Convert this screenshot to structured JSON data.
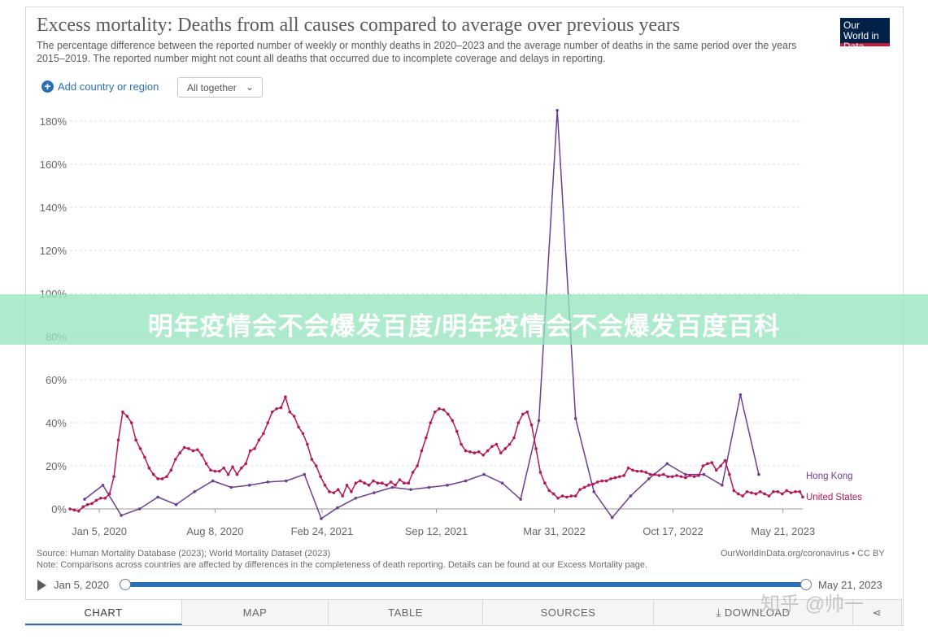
{
  "header": {
    "title": "Excess mortality: Deaths from all causes compared to average over previous years",
    "subtitle": "The percentage difference between the reported number of weekly or monthly deaths in 2020–2023 and the average number of deaths in the same period over the years 2015–2019. The reported number might not count all deaths that occurred due to incomplete coverage and delays in reporting.",
    "logo_text": "Our World in Data"
  },
  "controls": {
    "add_label": "Add country or region",
    "dropdown_value": "All together",
    "chevron_icon": "chevron-down-icon"
  },
  "banner": {
    "text": "明年疫情会不会爆发百度/明年疫情会不会爆发百度百科"
  },
  "chart_data": {
    "type": "line",
    "y_ticks": [
      "0%",
      "20%",
      "40%",
      "60%",
      "80%",
      "100%",
      "120%",
      "140%",
      "160%",
      "180%"
    ],
    "ylim": [
      -5,
      185
    ],
    "x_ticks": [
      "Jan 5, 2020",
      "Aug 8, 2020",
      "Feb 24, 2021",
      "Sep 12, 2021",
      "Mar 31, 2022",
      "Oct 17, 2022",
      "May 21, 2023"
    ],
    "grid": true,
    "legend_position": "right",
    "series": [
      {
        "name": "Hong Kong",
        "color": "#6d3e91",
        "points": [
          [
            0.02,
            4.5
          ],
          [
            0.045,
            11
          ],
          [
            0.07,
            -3
          ],
          [
            0.095,
            0
          ],
          [
            0.12,
            5.5
          ],
          [
            0.145,
            2
          ],
          [
            0.17,
            8
          ],
          [
            0.195,
            13
          ],
          [
            0.22,
            10
          ],
          [
            0.245,
            11
          ],
          [
            0.27,
            12.5
          ],
          [
            0.295,
            13
          ],
          [
            0.32,
            16
          ],
          [
            0.343,
            -4.5
          ],
          [
            0.365,
            0.5
          ],
          [
            0.39,
            5
          ],
          [
            0.415,
            7.5
          ],
          [
            0.44,
            10
          ],
          [
            0.465,
            9
          ],
          [
            0.49,
            10
          ],
          [
            0.515,
            11
          ],
          [
            0.54,
            13
          ],
          [
            0.565,
            16
          ],
          [
            0.59,
            12
          ],
          [
            0.615,
            4.5
          ],
          [
            0.64,
            41
          ],
          [
            0.665,
            185
          ],
          [
            0.69,
            42
          ],
          [
            0.715,
            8
          ],
          [
            0.74,
            -4
          ],
          [
            0.765,
            6
          ],
          [
            0.79,
            14
          ],
          [
            0.815,
            21
          ],
          [
            0.84,
            16
          ],
          [
            0.865,
            16
          ],
          [
            0.89,
            11
          ],
          [
            0.915,
            53
          ],
          [
            0.94,
            16
          ]
        ]
      },
      {
        "name": "United States",
        "color": "#b5175b",
        "points": [
          [
            0.0,
            0
          ],
          [
            0.006,
            -0.5
          ],
          [
            0.012,
            -1
          ],
          [
            0.018,
            1
          ],
          [
            0.024,
            2
          ],
          [
            0.03,
            2.5
          ],
          [
            0.036,
            4
          ],
          [
            0.042,
            5
          ],
          [
            0.048,
            5
          ],
          [
            0.054,
            7
          ],
          [
            0.06,
            15
          ],
          [
            0.066,
            32
          ],
          [
            0.072,
            45
          ],
          [
            0.078,
            43
          ],
          [
            0.084,
            40
          ],
          [
            0.09,
            32
          ],
          [
            0.096,
            28
          ],
          [
            0.102,
            24
          ],
          [
            0.108,
            19
          ],
          [
            0.114,
            16
          ],
          [
            0.12,
            14
          ],
          [
            0.126,
            14
          ],
          [
            0.132,
            15
          ],
          [
            0.138,
            18
          ],
          [
            0.144,
            23
          ],
          [
            0.15,
            26
          ],
          [
            0.156,
            28.5
          ],
          [
            0.162,
            28
          ],
          [
            0.168,
            27
          ],
          [
            0.174,
            27.5
          ],
          [
            0.18,
            25
          ],
          [
            0.186,
            21
          ],
          [
            0.192,
            18
          ],
          [
            0.198,
            17.5
          ],
          [
            0.204,
            17.5
          ],
          [
            0.21,
            19
          ],
          [
            0.216,
            16
          ],
          [
            0.222,
            19.5
          ],
          [
            0.228,
            16
          ],
          [
            0.234,
            19
          ],
          [
            0.24,
            21
          ],
          [
            0.246,
            27
          ],
          [
            0.252,
            28
          ],
          [
            0.258,
            32
          ],
          [
            0.264,
            35
          ],
          [
            0.27,
            40
          ],
          [
            0.276,
            45
          ],
          [
            0.282,
            46.5
          ],
          [
            0.288,
            47
          ],
          [
            0.294,
            52
          ],
          [
            0.3,
            45
          ],
          [
            0.306,
            43
          ],
          [
            0.312,
            38
          ],
          [
            0.318,
            35
          ],
          [
            0.324,
            30
          ],
          [
            0.33,
            23
          ],
          [
            0.336,
            20
          ],
          [
            0.342,
            15
          ],
          [
            0.348,
            11
          ],
          [
            0.354,
            8
          ],
          [
            0.36,
            7.5
          ],
          [
            0.366,
            9
          ],
          [
            0.372,
            6
          ],
          [
            0.378,
            11
          ],
          [
            0.384,
            8
          ],
          [
            0.39,
            12
          ],
          [
            0.396,
            13
          ],
          [
            0.402,
            12
          ],
          [
            0.408,
            11
          ],
          [
            0.414,
            13
          ],
          [
            0.42,
            12
          ],
          [
            0.426,
            12
          ],
          [
            0.432,
            11
          ],
          [
            0.438,
            12.5
          ],
          [
            0.444,
            11
          ],
          [
            0.45,
            13.5
          ],
          [
            0.456,
            12
          ],
          [
            0.462,
            12
          ],
          [
            0.468,
            17
          ],
          [
            0.474,
            20
          ],
          [
            0.48,
            27
          ],
          [
            0.486,
            33
          ],
          [
            0.492,
            40
          ],
          [
            0.498,
            45
          ],
          [
            0.504,
            46.5
          ],
          [
            0.51,
            46
          ],
          [
            0.516,
            44
          ],
          [
            0.522,
            41
          ],
          [
            0.528,
            36
          ],
          [
            0.534,
            30
          ],
          [
            0.54,
            27
          ],
          [
            0.546,
            26.5
          ],
          [
            0.552,
            26
          ],
          [
            0.558,
            26.5
          ],
          [
            0.564,
            25
          ],
          [
            0.57,
            27
          ],
          [
            0.576,
            29
          ],
          [
            0.582,
            30
          ],
          [
            0.588,
            26
          ],
          [
            0.594,
            28
          ],
          [
            0.6,
            30
          ],
          [
            0.606,
            33
          ],
          [
            0.612,
            40
          ],
          [
            0.618,
            44
          ],
          [
            0.624,
            45
          ],
          [
            0.63,
            39
          ],
          [
            0.636,
            28
          ],
          [
            0.642,
            17
          ],
          [
            0.648,
            12
          ],
          [
            0.654,
            8.5
          ],
          [
            0.66,
            7
          ],
          [
            0.666,
            5
          ],
          [
            0.672,
            6
          ],
          [
            0.678,
            5.5
          ],
          [
            0.684,
            6
          ],
          [
            0.69,
            6
          ],
          [
            0.696,
            9
          ],
          [
            0.702,
            10
          ],
          [
            0.708,
            11
          ],
          [
            0.714,
            11.5
          ],
          [
            0.72,
            12.5
          ],
          [
            0.726,
            13
          ],
          [
            0.732,
            13
          ],
          [
            0.738,
            14
          ],
          [
            0.744,
            14.5
          ],
          [
            0.75,
            15
          ],
          [
            0.756,
            15.5
          ],
          [
            0.762,
            19
          ],
          [
            0.768,
            18
          ],
          [
            0.774,
            17.5
          ],
          [
            0.78,
            17.5
          ],
          [
            0.786,
            17
          ],
          [
            0.792,
            16
          ],
          [
            0.798,
            16
          ],
          [
            0.804,
            15.5
          ],
          [
            0.81,
            16
          ],
          [
            0.816,
            15
          ],
          [
            0.822,
            15
          ],
          [
            0.828,
            15.5
          ],
          [
            0.834,
            15
          ],
          [
            0.84,
            14.5
          ],
          [
            0.846,
            15.5
          ],
          [
            0.852,
            15
          ],
          [
            0.858,
            15.5
          ],
          [
            0.864,
            20
          ],
          [
            0.87,
            21
          ],
          [
            0.876,
            21.5
          ],
          [
            0.882,
            18
          ],
          [
            0.888,
            20
          ],
          [
            0.894,
            22.5
          ],
          [
            0.9,
            16
          ],
          [
            0.906,
            8.5
          ],
          [
            0.912,
            7
          ],
          [
            0.918,
            6
          ],
          [
            0.924,
            8
          ],
          [
            0.93,
            7.5
          ],
          [
            0.936,
            7
          ],
          [
            0.942,
            8
          ],
          [
            0.948,
            7
          ],
          [
            0.954,
            6
          ],
          [
            0.96,
            8
          ],
          [
            0.966,
            8
          ],
          [
            0.972,
            7
          ],
          [
            0.978,
            8.5
          ],
          [
            0.984,
            7.5
          ],
          [
            0.99,
            8
          ],
          [
            0.996,
            8
          ],
          [
            1.0,
            5.5
          ]
        ]
      }
    ]
  },
  "footer": {
    "source": "Source: Human Mortality Database (2023); World Mortality Dataset (2023)",
    "note": "Note: Comparisons across countries are affected by differences in the completeness of death reporting. Details can be found at our Excess Mortality page.",
    "license": "OurWorldInData.org/coronavirus • CC BY"
  },
  "timeline": {
    "start": "Jan 5, 2020",
    "end": "May 21, 2023",
    "play_icon": "play-icon"
  },
  "tabs": [
    {
      "label": "CHART"
    },
    {
      "label": "MAP"
    },
    {
      "label": "TABLE"
    },
    {
      "label": "SOURCES"
    },
    {
      "label": "DOWNLOAD"
    },
    {
      "label": ""
    }
  ],
  "watermark": "知乎 @帅一"
}
